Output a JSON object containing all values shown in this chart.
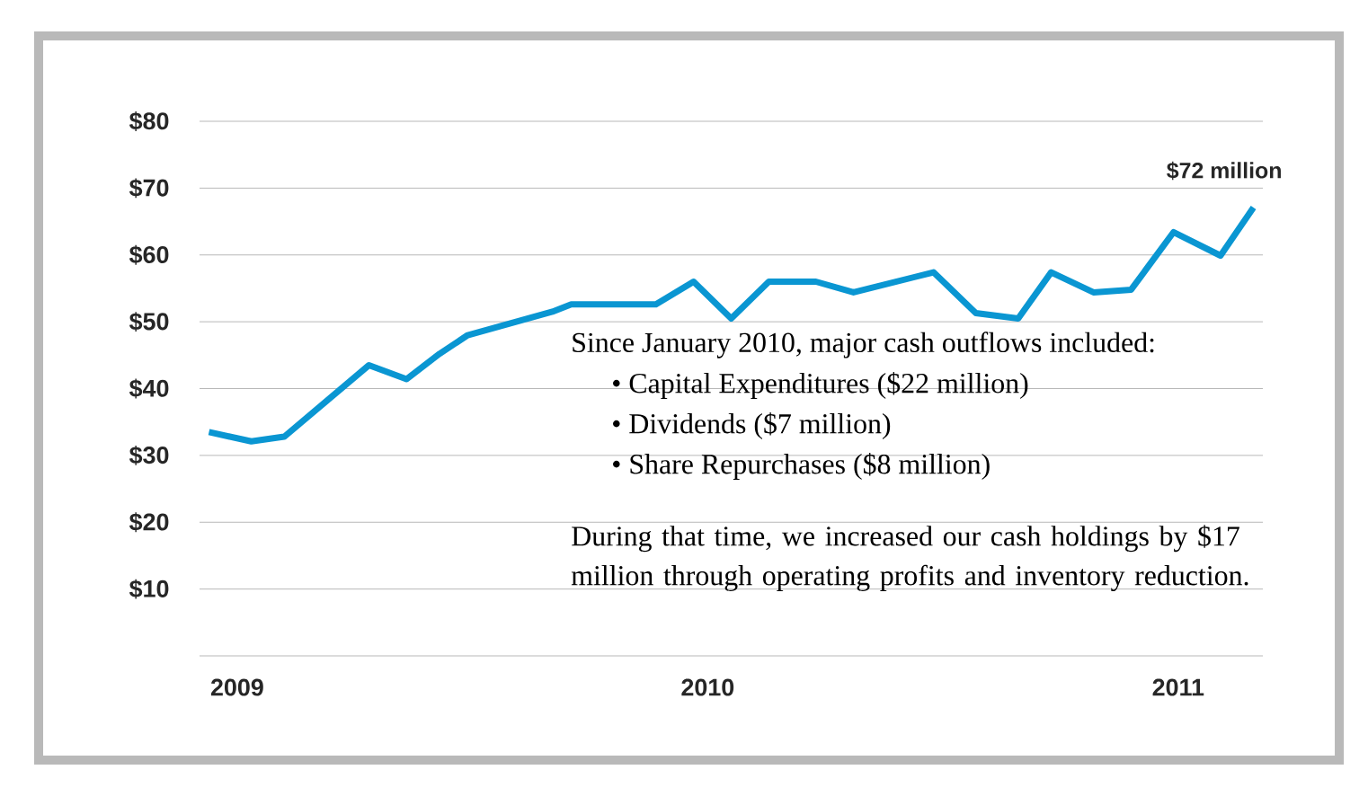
{
  "chart_data": {
    "type": "line",
    "x": [
      2008.94,
      2009.03,
      2009.1,
      2009.28,
      2009.36,
      2009.43,
      2009.49,
      2009.67,
      2009.71,
      2009.89,
      2009.97,
      2010.05,
      2010.13,
      2010.23,
      2010.31,
      2010.48,
      2010.57,
      2010.66,
      2010.73,
      2010.82,
      2010.9,
      2010.99,
      2011.09,
      2011.16
    ],
    "series": [
      {
        "color": "#0a96d2",
        "values": [
          33.5,
          32.1,
          32.8,
          43.5,
          41.4,
          45.2,
          48.0,
          51.5,
          52.6,
          52.6,
          56.0,
          50.5,
          56.0,
          56.0,
          54.4,
          57.4,
          51.3,
          50.5,
          57.4,
          54.4,
          54.8,
          63.4,
          59.9,
          67.1
        ]
      }
    ],
    "xlim": [
      2008.92,
      2011.18
    ],
    "xticks": [
      2009,
      2010,
      2011
    ],
    "ylim": [
      0,
      80
    ],
    "yticks": [
      {
        "value": 0,
        "label": null
      },
      {
        "value": 10,
        "label": "$10"
      },
      {
        "value": 20,
        "label": "$20"
      },
      {
        "value": 30,
        "label": "$30"
      },
      {
        "value": 40,
        "label": "$40"
      },
      {
        "value": 50,
        "label": "$50"
      },
      {
        "value": 60,
        "label": "$60"
      },
      {
        "value": 70,
        "label": "$70"
      },
      {
        "value": 80,
        "label": "$80"
      }
    ],
    "grid": "y",
    "marker": "none",
    "line_style": "solid",
    "annotations": [
      "$72 million",
      "Since January 2010, major cash outflows included:",
      "• Capital Expenditures ($22 million)",
      "• Dividends ($7 million)",
      "• Share Repurchases ($8 million)",
      "During that time, we increased our cash holdings by $17 million through operating profits and inventory reduction."
    ]
  }
}
